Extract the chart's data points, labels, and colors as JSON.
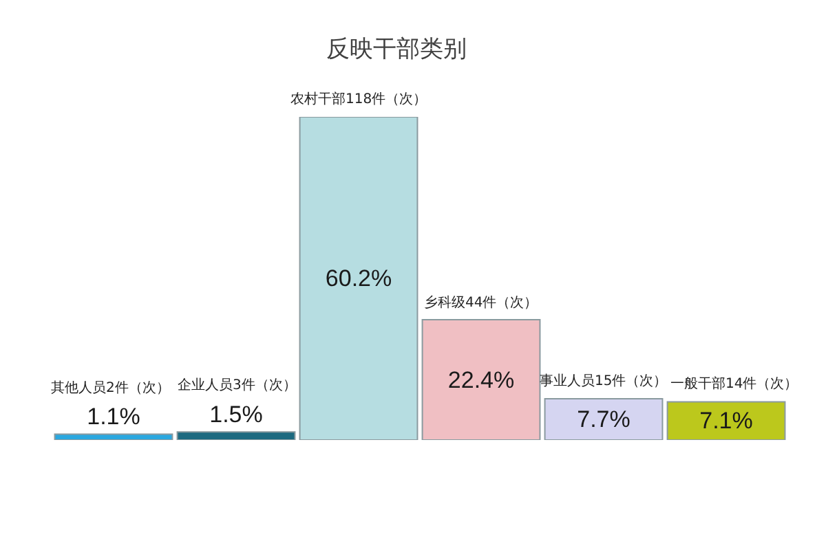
{
  "chart_data": {
    "type": "bar",
    "title": "反映干部类别",
    "categories": [
      "其他人员2件（次）",
      "企业人员3件（次）",
      "农村干部118件（次）",
      "乡科级44件（次）",
      "事业人员15件（次）",
      "一般干部14件（次）"
    ],
    "values": [
      1.1,
      1.5,
      60.2,
      22.4,
      7.7,
      7.1
    ],
    "value_labels": [
      "1.1%",
      "1.5%",
      "60.2%",
      "22.4%",
      "7.7%",
      "7.1%"
    ],
    "colors": [
      "#2aa8e0",
      "#1d6a80",
      "#b6dde1",
      "#f0bfc3",
      "#d5d5f1",
      "#bcc81c"
    ],
    "tick_labels": false
  }
}
